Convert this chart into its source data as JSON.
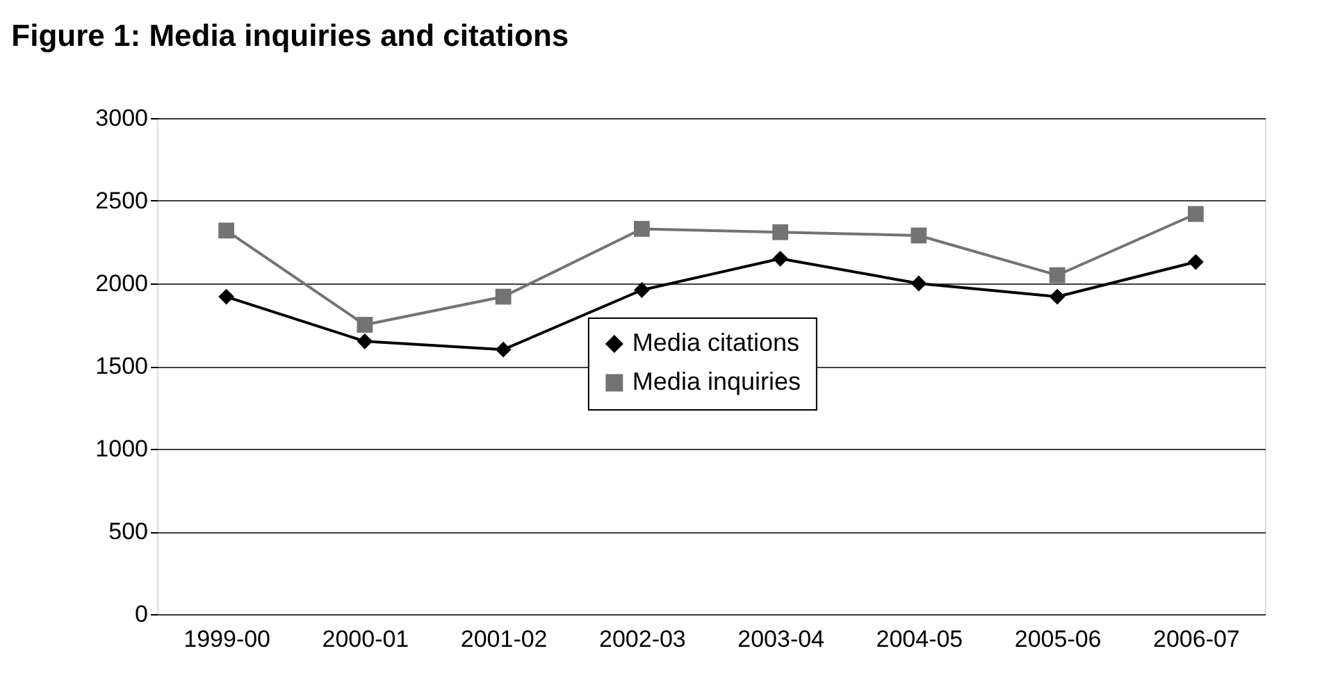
{
  "chart_data": {
    "type": "line",
    "title": "Figure 1: Media inquiries and citations",
    "categories": [
      "1999-00",
      "2000-01",
      "2001-02",
      "2002-03",
      "2003-04",
      "2004-05",
      "2005-06",
      "2006-07"
    ],
    "series": [
      {
        "name": "Media citations",
        "color": "#000000",
        "marker": "diamond",
        "values": [
          1920,
          1650,
          1600,
          1960,
          2150,
          2000,
          1920,
          2130
        ]
      },
      {
        "name": "Media inquiries",
        "color": "#737373",
        "marker": "square",
        "values": [
          2320,
          1750,
          1920,
          2330,
          2310,
          2290,
          2050,
          2420
        ]
      }
    ],
    "ylim": [
      0,
      3000
    ],
    "yticks": [
      0,
      500,
      1000,
      1500,
      2000,
      2500,
      3000
    ],
    "grid": "y",
    "legend": "center",
    "line_style": "solid"
  }
}
